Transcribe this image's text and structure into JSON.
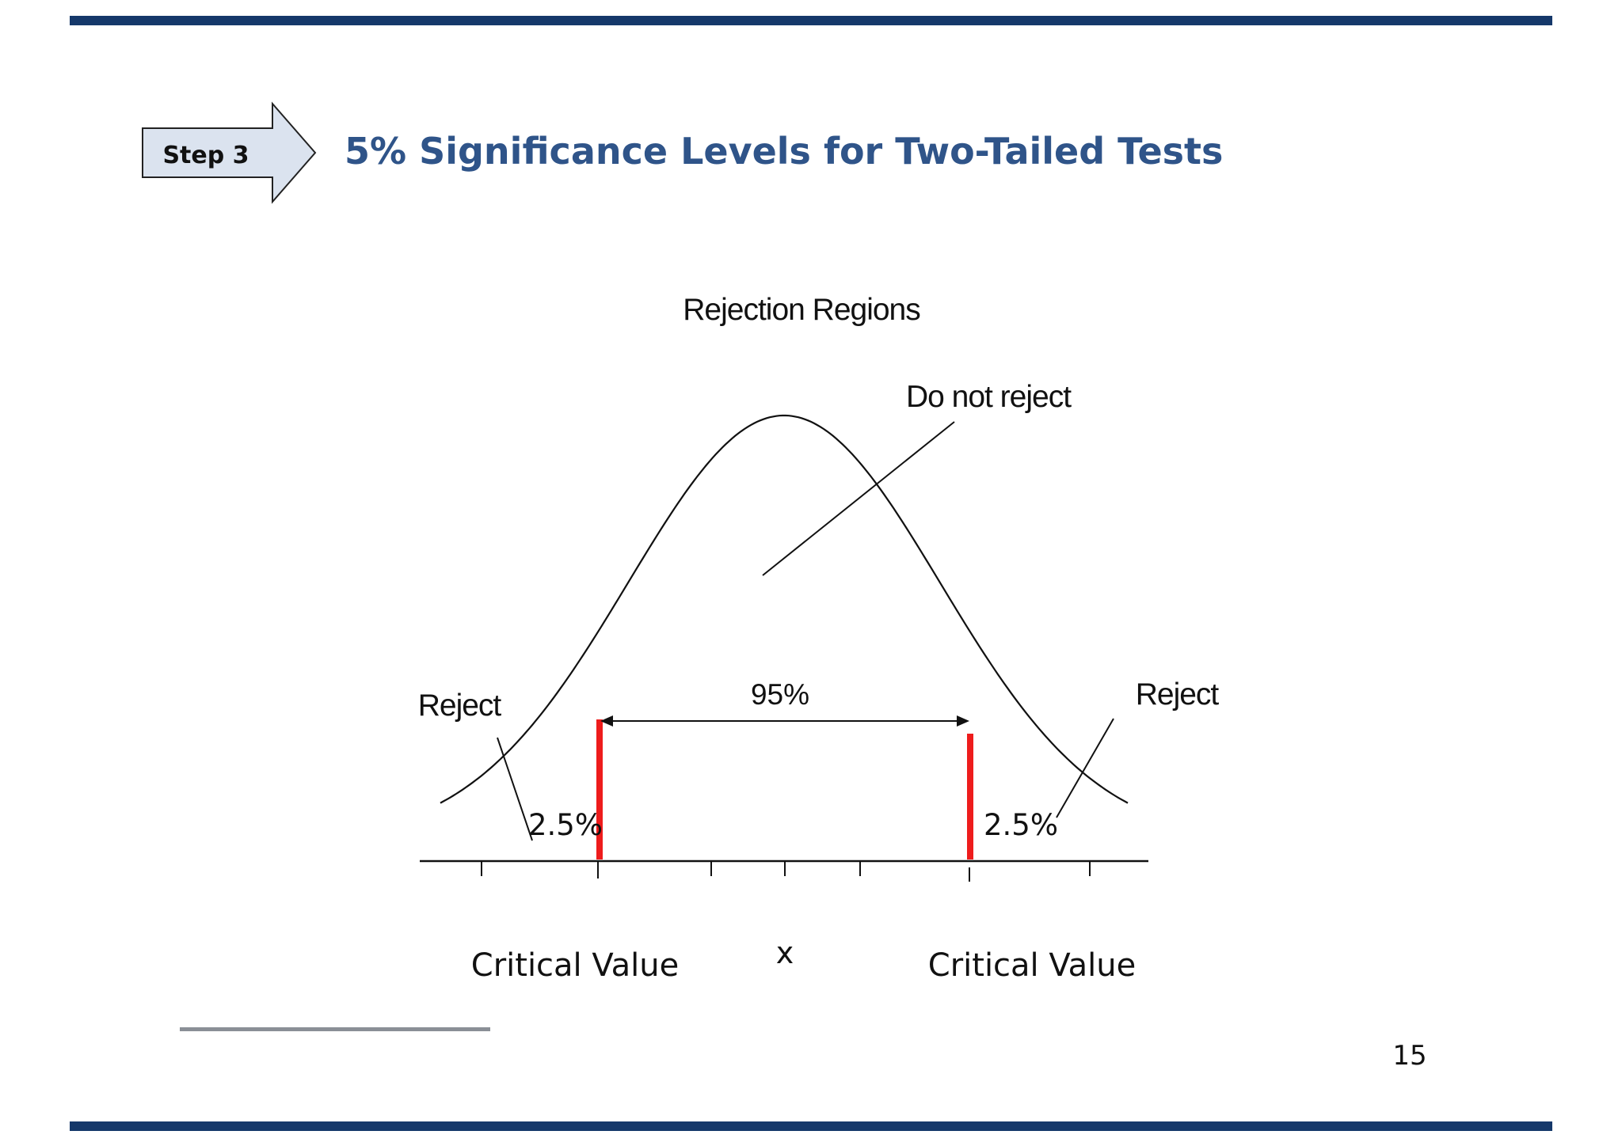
{
  "header": {
    "step_badge": "Step 3",
    "title": "5% Significance Levels for Two-Tailed Tests"
  },
  "diagram": {
    "heading": "Rejection Regions",
    "do_not_reject_label": "Do not reject",
    "reject_left_label": "Reject",
    "reject_right_label": "Reject",
    "center_percent": "95%",
    "left_tail_percent": "2.5%",
    "right_tail_percent": "2.5%",
    "axis_label": "x",
    "critical_value_left": "Critical Value",
    "critical_value_right": "Critical Value",
    "critical_color": "#ee1c1c",
    "line_color": "#111111"
  },
  "footer": {
    "page_number": "15"
  }
}
